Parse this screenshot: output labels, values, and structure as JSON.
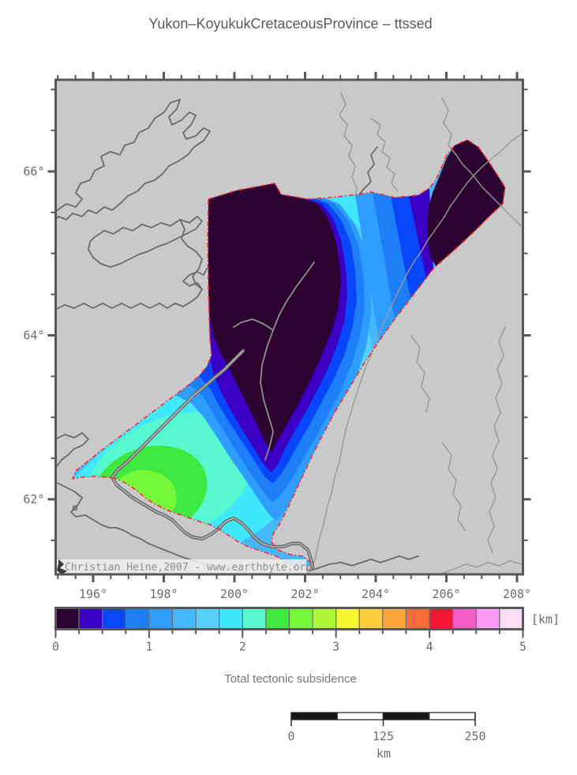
{
  "title": "Yukon–KoyukukCretaceousProvince – ttssed",
  "map": {
    "watermark": "Christian Heine,2007 - www.earthbyte.org",
    "land_color": "#c9c9c9",
    "coast_color": "#6a6a6a",
    "river_color": "#989898",
    "frame_color": "#575757",
    "outline_color": "#ff2a2a",
    "x_axis": {
      "values": [
        196,
        198,
        200,
        202,
        204,
        206,
        208
      ],
      "labels": [
        "196°",
        "198°",
        "200°",
        "202°",
        "204°",
        "206°",
        "208°"
      ],
      "minor_step": 0.5
    },
    "y_axis": {
      "values": [
        66,
        64,
        62
      ],
      "labels": [
        "66°",
        "64°",
        "62°"
      ],
      "minor_step": 0.5
    }
  },
  "colorbar": {
    "caption": "Total tectonic subsidence",
    "unit": "[km]",
    "min": 0,
    "max": 5,
    "step": 0.25,
    "tick_labels": [
      "0",
      "1",
      "2",
      "3",
      "4",
      "5"
    ],
    "colors": [
      "#2d0331",
      "#3b00c3",
      "#0846fb",
      "#1e7ef7",
      "#2f9cff",
      "#45b8fc",
      "#59cdfb",
      "#3fe8fd",
      "#57f7cf",
      "#3fe83f",
      "#76f73a",
      "#aef735",
      "#f7f72e",
      "#fcce3b",
      "#fca53b",
      "#fa6d3a",
      "#f71434",
      "#f75bc8",
      "#fb9bf7",
      "#fcdcf2"
    ]
  },
  "scalebar": {
    "tick_labels": [
      "0",
      "125",
      "250"
    ],
    "unit": "km",
    "length_km": 250
  }
}
